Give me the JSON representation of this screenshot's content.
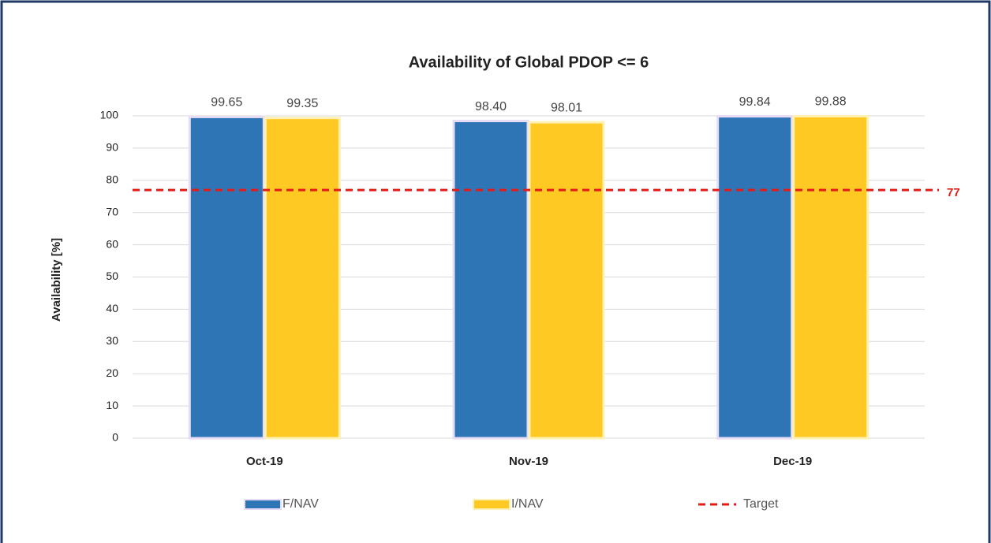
{
  "chart_data": {
    "type": "bar",
    "title": "Availability of Global PDOP <= 6",
    "y_label": "Availability [%]",
    "categories": [
      "Oct-19",
      "Nov-19",
      "Dec-19"
    ],
    "series": [
      {
        "name": "F/NAV",
        "color": "#2e75b6",
        "values": [
          99.65,
          98.4,
          99.84
        ],
        "value_labels": [
          "99.65",
          "98.40",
          "99.84"
        ]
      },
      {
        "name": "I/NAV",
        "color": "#ffc923",
        "values": [
          99.35,
          98.01,
          99.88
        ],
        "value_labels": [
          "99.35",
          "98.01",
          "99.88"
        ]
      }
    ],
    "target": {
      "name": "Target",
      "value": 77,
      "color": "#e41b17"
    },
    "ylim": [
      0,
      100
    ],
    "yticks": [
      0,
      10,
      20,
      30,
      40,
      50,
      60,
      70,
      80,
      90,
      100
    ],
    "grid": true
  }
}
